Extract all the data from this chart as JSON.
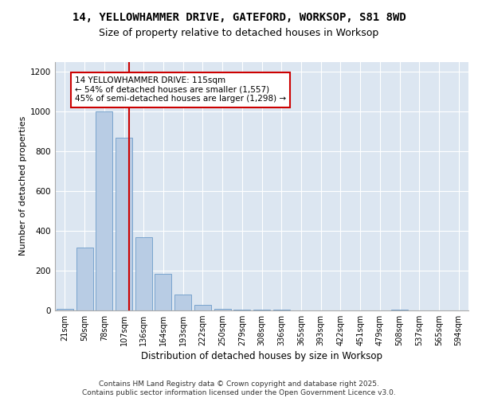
{
  "title_line1": "14, YELLOWHAMMER DRIVE, GATEFORD, WORKSOP, S81 8WD",
  "title_line2": "Size of property relative to detached houses in Worksop",
  "xlabel": "Distribution of detached houses by size in Worksop",
  "ylabel": "Number of detached properties",
  "categories": [
    "21sqm",
    "50sqm",
    "78sqm",
    "107sqm",
    "136sqm",
    "164sqm",
    "193sqm",
    "222sqm",
    "250sqm",
    "279sqm",
    "308sqm",
    "336sqm",
    "365sqm",
    "393sqm",
    "422sqm",
    "451sqm",
    "479sqm",
    "508sqm",
    "537sqm",
    "565sqm",
    "594sqm"
  ],
  "values": [
    10,
    315,
    1000,
    870,
    370,
    185,
    80,
    30,
    10,
    5,
    3,
    3,
    0,
    0,
    0,
    0,
    0,
    5,
    0,
    0,
    0
  ],
  "bar_color": "#b8cce4",
  "bar_edge_color": "#5a8fc3",
  "background_color": "#dce6f1",
  "grid_color": "#ffffff",
  "annotation_text": "14 YELLOWHAMMER DRIVE: 115sqm\n← 54% of detached houses are smaller (1,557)\n45% of semi-detached houses are larger (1,298) →",
  "vline_color": "#cc0000",
  "annotation_box_edgecolor": "#cc0000",
  "footer_line1": "Contains HM Land Registry data © Crown copyright and database right 2025.",
  "footer_line2": "Contains public sector information licensed under the Open Government Licence v3.0.",
  "ylim": [
    0,
    1250
  ],
  "yticks": [
    0,
    200,
    400,
    600,
    800,
    1000,
    1200
  ],
  "title_fontsize": 10,
  "subtitle_fontsize": 9,
  "axis_label_fontsize": 8,
  "tick_fontsize": 7,
  "annotation_fontsize": 7.5,
  "footer_fontsize": 6.5
}
